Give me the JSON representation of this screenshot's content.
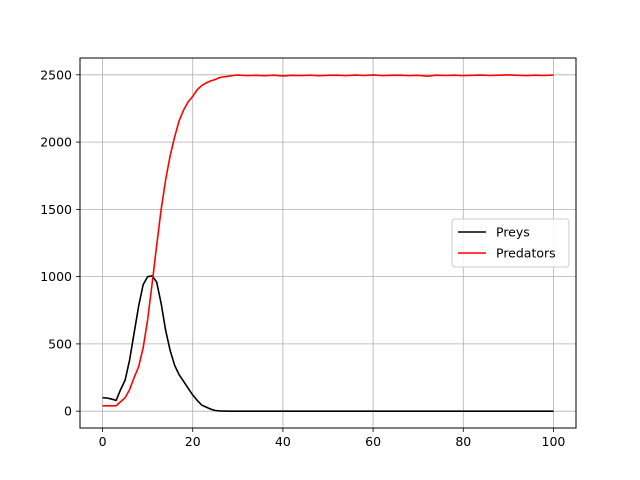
{
  "chart_data": {
    "type": "line",
    "title": "",
    "xlabel": "",
    "ylabel": "",
    "xlim": [
      -5,
      105
    ],
    "ylim": [
      -125,
      2625
    ],
    "xticks": [
      0,
      20,
      40,
      60,
      80,
      100
    ],
    "yticks": [
      0,
      500,
      1000,
      1500,
      2000,
      2500
    ],
    "grid": true,
    "legend_position": "center-right",
    "series": [
      {
        "name": "Preys",
        "color": "#000000",
        "x": [
          0,
          1,
          2,
          3,
          4,
          5,
          6,
          7,
          8,
          9,
          10,
          11,
          12,
          13,
          14,
          15,
          16,
          17,
          18,
          19,
          20,
          21,
          22,
          23,
          24,
          25,
          26,
          27,
          28,
          29,
          30,
          35,
          40,
          45,
          50,
          55,
          60,
          65,
          70,
          75,
          80,
          85,
          90,
          95,
          100
        ],
        "y": [
          100,
          98,
          90,
          80,
          160,
          230,
          380,
          580,
          780,
          940,
          1000,
          1005,
          960,
          800,
          600,
          450,
          340,
          270,
          220,
          170,
          120,
          80,
          45,
          30,
          15,
          5,
          2,
          1,
          0,
          0,
          0,
          0,
          0,
          0,
          0,
          0,
          0,
          0,
          0,
          0,
          0,
          0,
          0,
          0,
          0
        ]
      },
      {
        "name": "Predators",
        "color": "#ff0000",
        "x": [
          0,
          1,
          2,
          3,
          4,
          5,
          6,
          7,
          8,
          9,
          10,
          11,
          12,
          13,
          14,
          15,
          16,
          17,
          18,
          19,
          20,
          21,
          22,
          23,
          24,
          25,
          26,
          27,
          28,
          29,
          30,
          32,
          34,
          36,
          38,
          40,
          42,
          44,
          46,
          48,
          50,
          52,
          54,
          56,
          58,
          60,
          62,
          64,
          66,
          68,
          70,
          72,
          74,
          76,
          78,
          80,
          82,
          84,
          86,
          88,
          90,
          92,
          94,
          96,
          98,
          100
        ],
        "y": [
          40,
          40,
          40,
          40,
          70,
          100,
          160,
          250,
          330,
          470,
          680,
          950,
          1230,
          1500,
          1720,
          1900,
          2040,
          2160,
          2240,
          2300,
          2340,
          2390,
          2420,
          2440,
          2455,
          2465,
          2480,
          2485,
          2490,
          2495,
          2498,
          2494,
          2496,
          2493,
          2497,
          2492,
          2496,
          2494,
          2497,
          2493,
          2496,
          2497,
          2494,
          2498,
          2495,
          2499,
          2494,
          2496,
          2497,
          2494,
          2496,
          2490,
          2497,
          2495,
          2497,
          2494,
          2496,
          2498,
          2495,
          2497,
          2499,
          2496,
          2494,
          2497,
          2495,
          2498
        ]
      }
    ]
  }
}
